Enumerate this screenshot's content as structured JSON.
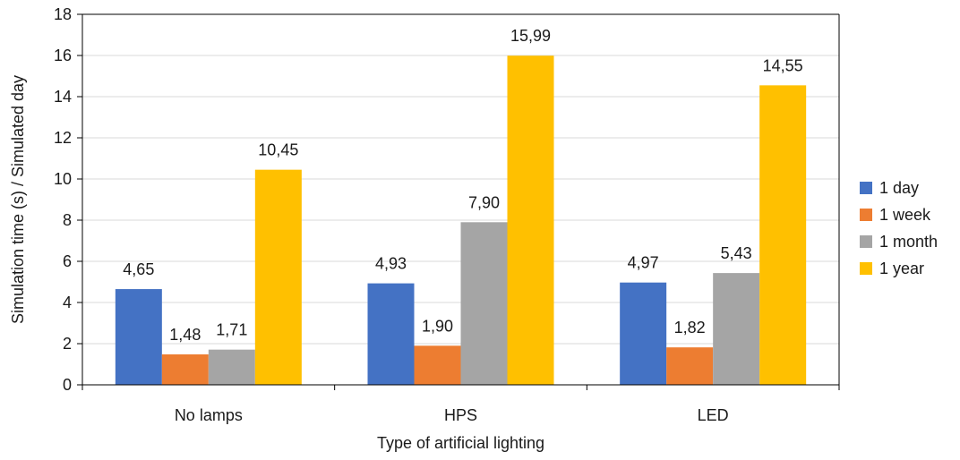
{
  "chart_data": {
    "type": "bar",
    "title": "",
    "xlabel": "Type of artificial lighting",
    "ylabel": "Simulation time (s) / Simulated day",
    "categories": [
      "No lamps",
      "HPS",
      "LED"
    ],
    "ylim": [
      0,
      18
    ],
    "yticks": [
      0,
      2,
      4,
      6,
      8,
      10,
      12,
      14,
      16,
      18
    ],
    "grid": true,
    "legend_position": "right",
    "series": [
      {
        "name": "1 day",
        "color": "#4472C4",
        "values": [
          4.65,
          4.93,
          4.97
        ],
        "labels": [
          "4,65",
          "4,93",
          "4,97"
        ]
      },
      {
        "name": "1 week",
        "color": "#ED7D31",
        "values": [
          1.48,
          1.9,
          1.82
        ],
        "labels": [
          "1,48",
          "1,90",
          "1,82"
        ]
      },
      {
        "name": "1 month",
        "color": "#A5A5A5",
        "values": [
          1.71,
          7.9,
          5.43
        ],
        "labels": [
          "1,71",
          "7,90",
          "5,43"
        ]
      },
      {
        "name": "1 year",
        "color": "#FFC000",
        "values": [
          10.45,
          15.99,
          14.55
        ],
        "labels": [
          "10,45",
          "15,99",
          "14,55"
        ]
      }
    ]
  }
}
